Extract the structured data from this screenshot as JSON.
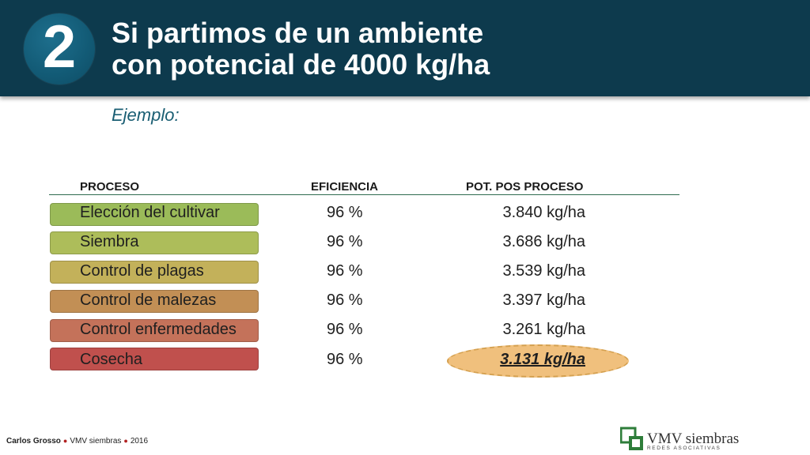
{
  "header": {
    "number": "2",
    "title_line1": "Si partimos de un ambiente",
    "title_line2": "con potencial de 4000 kg/ha"
  },
  "subtitle": "Ejemplo:",
  "table": {
    "headers": [
      "PROCESO",
      "EFICIENCIA",
      "POT. POS PROCESO"
    ],
    "rows": [
      {
        "proceso": "Elección del cultivar",
        "eficiencia": "96 %",
        "potencial": "3.840 kg/ha",
        "color": "#9bbb59"
      },
      {
        "proceso": "Siembra",
        "eficiencia": "96 %",
        "potencial": "3.686 kg/ha",
        "color": "#adbd5a"
      },
      {
        "proceso": "Control de plagas",
        "eficiencia": "96 %",
        "potencial": "3.539 kg/ha",
        "color": "#c3b15a"
      },
      {
        "proceso": "Control de malezas",
        "eficiencia": "96 %",
        "potencial": "3.397 kg/ha",
        "color": "#c28f55"
      },
      {
        "proceso": "Control enfermedades",
        "eficiencia": "96 %",
        "potencial": "3.261 kg/ha",
        "color": "#c4725a"
      },
      {
        "proceso": "Cosecha",
        "eficiencia": "96 %",
        "potencial": "3.131 kg/ha",
        "color": "#c0504d"
      }
    ]
  },
  "footer": {
    "author": "Carlos Grosso",
    "org": "VMV siembras",
    "year": "2016"
  },
  "logo": {
    "name": "VMV siembras",
    "tagline": "REDES ASOCIATIVAS"
  },
  "colors": {
    "header_bg": "#0d3a4d",
    "circle": "#125a75",
    "highlight": "#f0c07d"
  }
}
